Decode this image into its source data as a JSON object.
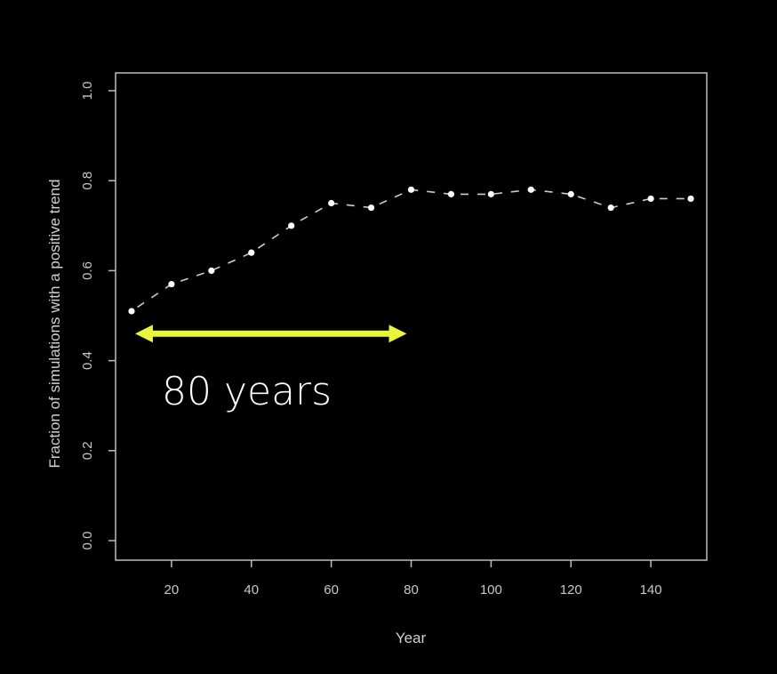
{
  "chart_data": {
    "type": "line",
    "title": "",
    "xlabel": "Year",
    "ylabel": "Fraction of simulations with a positive trend",
    "xlim": [
      6,
      154
    ],
    "ylim": [
      0.0,
      1.0
    ],
    "xticks": [
      20,
      40,
      60,
      80,
      100,
      120,
      140
    ],
    "yticks": [
      "0.0",
      "0.2",
      "0.4",
      "0.6",
      "0.8",
      "1.0"
    ],
    "grid": false,
    "legend": "none",
    "line_style": "dashed with points",
    "series": [
      {
        "x": [
          10,
          20,
          30,
          40,
          50,
          60,
          70,
          80,
          90,
          100,
          110,
          120,
          130,
          140,
          150
        ],
        "values": [
          0.51,
          0.57,
          0.6,
          0.64,
          0.7,
          0.75,
          0.74,
          0.78,
          0.77,
          0.77,
          0.78,
          0.77,
          0.74,
          0.76,
          0.76
        ]
      }
    ],
    "annotations": [
      {
        "type": "double-arrow",
        "x_start": 10,
        "x_end": 80,
        "y": 0.46,
        "text": "80 years"
      }
    ]
  },
  "colors": {
    "background": "#000000",
    "axis": "#bdbdbd",
    "line": "#cccccc",
    "points": "#ffffff",
    "arrow": "#e8f53a",
    "annotation_text": "#ffffff"
  }
}
